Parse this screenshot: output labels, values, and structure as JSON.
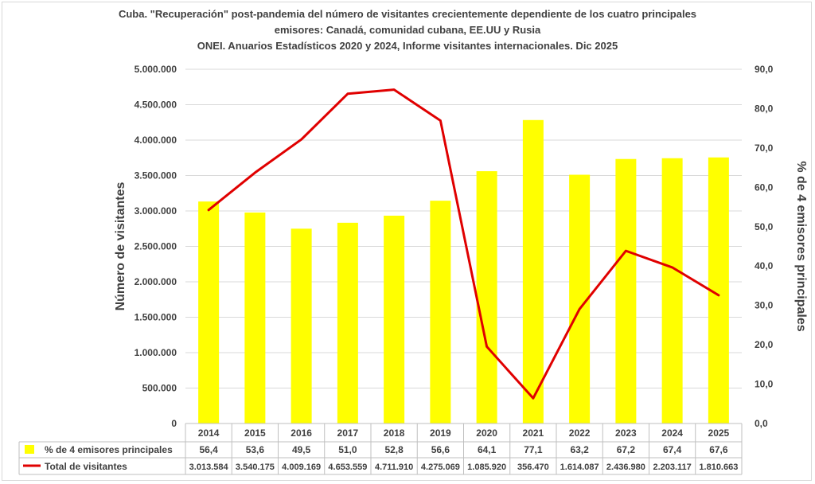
{
  "chart_data": {
    "type": "bar",
    "title_lines": [
      "Cuba. \"Recuperación\" post-pandemia del número de visitantes crecientemente dependiente de los cuatro principales",
      "emisores: Canadá, comunidad cubana, EE.UU y Rusia",
      "ONEI. Anuarios Estadísticos 2020 y 2024, Informe visitantes internacionales. Dic 2025"
    ],
    "categories": [
      "2014",
      "2015",
      "2016",
      "2017",
      "2018",
      "2019",
      "2020",
      "2021",
      "2022",
      "2023",
      "2024",
      "2025"
    ],
    "series": [
      {
        "name": "% de 4 emisores principales",
        "type": "bar",
        "axis": "right",
        "color": "#ffff00",
        "values": [
          56.4,
          53.6,
          49.5,
          51.0,
          52.8,
          56.6,
          64.1,
          77.1,
          63.2,
          67.2,
          67.4,
          67.6
        ],
        "table_labels": [
          "56,4",
          "53,6",
          "49,5",
          "51,0",
          "52,8",
          "56,6",
          "64,1",
          "77,1",
          "63,2",
          "67,2",
          "67,4",
          "67,6"
        ]
      },
      {
        "name": "Total de visitantes",
        "type": "line",
        "axis": "left",
        "color": "#e00000",
        "values": [
          3013584,
          3540175,
          4009169,
          4653559,
          4711910,
          4275069,
          1085920,
          356470,
          1614087,
          2436980,
          2203117,
          1810663
        ],
        "table_labels": [
          "3.013.584",
          "3.540.175",
          "4.009.169",
          "4.653.559",
          "4.711.910",
          "4.275.069",
          "1.085.920",
          "356.470",
          "1.614.087",
          "2.436.980",
          "2.203.117",
          "1.810.663"
        ]
      }
    ],
    "ylabel_left": "Número de visitantes",
    "ylabel_right": "% de 4 emisores principales",
    "ylim_left": [
      0,
      5000000
    ],
    "ylim_right": [
      0,
      90
    ],
    "left_ticks": [
      "0",
      "500.000",
      "1.000.000",
      "1.500.000",
      "2.000.000",
      "2.500.000",
      "3.000.000",
      "3.500.000",
      "4.000.000",
      "4.500.000",
      "5.000.000"
    ],
    "right_ticks": [
      "0,0",
      "10,0",
      "20,0",
      "30,0",
      "40,0",
      "50,0",
      "60,0",
      "70,0",
      "80,0",
      "90,0"
    ],
    "grid": true,
    "legend": "data table below chart"
  }
}
